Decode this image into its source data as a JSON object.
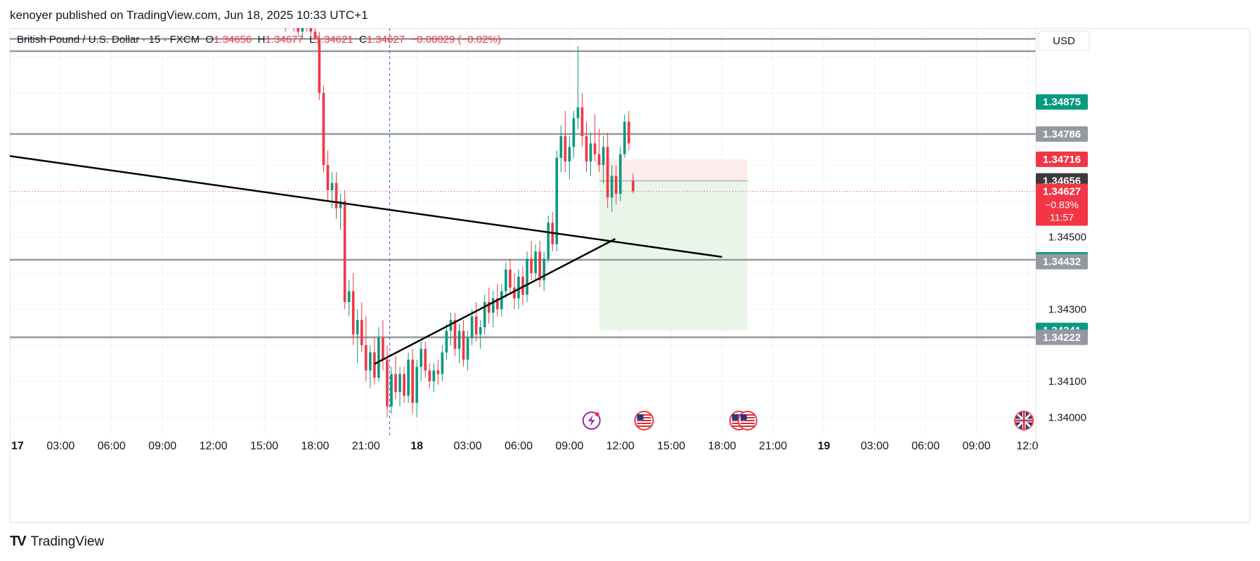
{
  "header": {
    "text": "kenoyer published on TradingView.com, Jun 18, 2025 10:33 UTC+1"
  },
  "footer": {
    "logo": "TV",
    "brand": "TradingView"
  },
  "chart_data": {
    "type": "candlestick",
    "legend": {
      "symbol": "British Pound / U.S. Dollar · 15 · FXCM",
      "o_label": "O",
      "o_value": "1.34656",
      "h_label": "H",
      "h_value": "1.34677",
      "l_label": "L",
      "l_value": "1.34621",
      "c_label": "C",
      "c_value": "1.34627",
      "change": "−0.00029 (−0.02%)"
    },
    "currency": "USD",
    "y_range": [
      1.3395,
      1.3508
    ],
    "y_ticks": [
      "1.34500",
      "1.34300",
      "1.34100",
      "1.34000"
    ],
    "x_ticks": [
      "17",
      "03:00",
      "06:00",
      "09:00",
      "12:00",
      "15:00",
      "18:00",
      "21:00",
      "18",
      "03:00",
      "06:00",
      "09:00",
      "12:00",
      "15:00",
      "18:00",
      "21:00",
      "19",
      "03:00",
      "06:00",
      "09:00",
      "12:0"
    ],
    "x_tick_times": [
      0,
      3,
      6,
      9,
      12,
      15,
      18,
      21,
      24,
      27,
      30,
      33,
      36,
      39,
      42,
      45,
      48,
      51,
      54,
      57,
      60
    ],
    "x_range_hours": [
      0,
      60.5
    ],
    "candles_start_hour": 15.25,
    "candle_step_hours": 0.25,
    "candles": [
      [
        1.3512,
        1.3515,
        1.3509,
        1.351
      ],
      [
        1.351,
        1.3514,
        1.3508,
        1.3513
      ],
      [
        1.3512,
        1.3516,
        1.351,
        1.3511
      ],
      [
        1.3511,
        1.3513,
        1.3508,
        1.3509
      ],
      [
        1.3509,
        1.3512,
        1.3507,
        1.351
      ],
      [
        1.351,
        1.3513,
        1.3508,
        1.3509
      ],
      [
        1.3509,
        1.3511,
        1.3507,
        1.3508
      ],
      [
        1.3508,
        1.3511,
        1.3506,
        1.3507
      ],
      [
        1.3507,
        1.351,
        1.3505,
        1.3509
      ],
      [
        1.3509,
        1.3511,
        1.3507,
        1.3508
      ],
      [
        1.3508,
        1.351,
        1.3506,
        1.3507
      ],
      [
        1.3507,
        1.3509,
        1.3505,
        1.3505
      ],
      [
        1.3505,
        1.3507,
        1.3488,
        1.349
      ],
      [
        1.349,
        1.3492,
        1.3468,
        1.347
      ],
      [
        1.347,
        1.3474,
        1.346,
        1.3463
      ],
      [
        1.3463,
        1.3468,
        1.3458,
        1.3465
      ],
      [
        1.3465,
        1.3468,
        1.3455,
        1.3458
      ],
      [
        1.3458,
        1.3462,
        1.3452,
        1.346
      ],
      [
        1.346,
        1.3463,
        1.343,
        1.3432
      ],
      [
        1.3432,
        1.3438,
        1.3428,
        1.3435
      ],
      [
        1.3435,
        1.344,
        1.342,
        1.3423
      ],
      [
        1.3423,
        1.343,
        1.3415,
        1.3427
      ],
      [
        1.3427,
        1.3432,
        1.3418,
        1.342
      ],
      [
        1.342,
        1.3428,
        1.341,
        1.3413
      ],
      [
        1.3413,
        1.342,
        1.3408,
        1.3418
      ],
      [
        1.3418,
        1.3422,
        1.3409,
        1.3411
      ],
      [
        1.3411,
        1.3425,
        1.341,
        1.3422
      ],
      [
        1.3422,
        1.3427,
        1.3413,
        1.3416
      ],
      [
        1.3416,
        1.342,
        1.34,
        1.3403
      ],
      [
        1.3403,
        1.3414,
        1.3401,
        1.3412
      ],
      [
        1.3412,
        1.3417,
        1.3405,
        1.3407
      ],
      [
        1.3407,
        1.3414,
        1.3403,
        1.3412
      ],
      [
        1.3412,
        1.3414,
        1.3404,
        1.3406
      ],
      [
        1.3406,
        1.3418,
        1.3404,
        1.3416
      ],
      [
        1.3416,
        1.3419,
        1.3401,
        1.3404
      ],
      [
        1.3404,
        1.3416,
        1.34,
        1.3414
      ],
      [
        1.3414,
        1.3421,
        1.341,
        1.3419
      ],
      [
        1.3419,
        1.3421,
        1.3411,
        1.3413
      ],
      [
        1.3413,
        1.3415,
        1.3408,
        1.341
      ],
      [
        1.341,
        1.3415,
        1.3407,
        1.3413
      ],
      [
        1.3413,
        1.3416,
        1.3409,
        1.3412
      ],
      [
        1.3412,
        1.342,
        1.341,
        1.3418
      ],
      [
        1.3418,
        1.3426,
        1.3416,
        1.3424
      ],
      [
        1.3424,
        1.3429,
        1.342,
        1.3427
      ],
      [
        1.3427,
        1.3429,
        1.3417,
        1.3419
      ],
      [
        1.3419,
        1.3426,
        1.3415,
        1.3424
      ],
      [
        1.3424,
        1.3427,
        1.3414,
        1.3416
      ],
      [
        1.3416,
        1.3424,
        1.3413,
        1.3422
      ],
      [
        1.3422,
        1.343,
        1.342,
        1.3428
      ],
      [
        1.3428,
        1.3432,
        1.3421,
        1.3423
      ],
      [
        1.3423,
        1.3427,
        1.3419,
        1.3425
      ],
      [
        1.3425,
        1.3434,
        1.3423,
        1.3432
      ],
      [
        1.3432,
        1.3436,
        1.3426,
        1.3429
      ],
      [
        1.3429,
        1.3435,
        1.3425,
        1.3433
      ],
      [
        1.3433,
        1.3437,
        1.3428,
        1.343
      ],
      [
        1.343,
        1.3437,
        1.3428,
        1.3435
      ],
      [
        1.3435,
        1.3443,
        1.3433,
        1.3441
      ],
      [
        1.3441,
        1.3444,
        1.3434,
        1.3436
      ],
      [
        1.3436,
        1.344,
        1.343,
        1.3433
      ],
      [
        1.3433,
        1.3441,
        1.343,
        1.3439
      ],
      [
        1.3439,
        1.3442,
        1.3431,
        1.3434
      ],
      [
        1.3434,
        1.3446,
        1.3432,
        1.3444
      ],
      [
        1.3444,
        1.3449,
        1.3438,
        1.344
      ],
      [
        1.344,
        1.3448,
        1.3438,
        1.3446
      ],
      [
        1.3446,
        1.3449,
        1.3436,
        1.3438
      ],
      [
        1.3438,
        1.3446,
        1.3435,
        1.3444
      ],
      [
        1.3444,
        1.3456,
        1.3443,
        1.3454
      ],
      [
        1.3454,
        1.3457,
        1.3446,
        1.3448
      ],
      [
        1.3448,
        1.3474,
        1.3446,
        1.3472
      ],
      [
        1.3472,
        1.3481,
        1.3468,
        1.3478
      ],
      [
        1.3478,
        1.3485,
        1.3468,
        1.3471
      ],
      [
        1.3471,
        1.3478,
        1.3466,
        1.3475
      ],
      [
        1.3475,
        1.3485,
        1.3472,
        1.3483
      ],
      [
        1.3483,
        1.3503,
        1.348,
        1.3486
      ],
      [
        1.3486,
        1.349,
        1.3475,
        1.3478
      ],
      [
        1.3478,
        1.3482,
        1.3468,
        1.3471
      ],
      [
        1.3471,
        1.3479,
        1.3467,
        1.3476
      ],
      [
        1.3476,
        1.3484,
        1.3471,
        1.3473
      ],
      [
        1.3473,
        1.348,
        1.3468,
        1.347
      ],
      [
        1.347,
        1.3478,
        1.3465,
        1.3475
      ],
      [
        1.3475,
        1.3479,
        1.3458,
        1.3461
      ],
      [
        1.3461,
        1.347,
        1.3457,
        1.3467
      ],
      [
        1.3467,
        1.347,
        1.3459,
        1.3462
      ],
      [
        1.3462,
        1.3475,
        1.346,
        1.3473
      ],
      [
        1.3473,
        1.3484,
        1.3472,
        1.3482
      ],
      [
        1.3482,
        1.3485,
        1.3474,
        1.3476
      ],
      [
        1.34656,
        1.34677,
        1.34621,
        1.34627
      ]
    ],
    "horizontal_levels": [
      1.3505,
      1.35016,
      1.34786,
      1.34437,
      1.34222
    ],
    "current_price_line": 1.34627,
    "price_labels": [
      {
        "value": 1.34875,
        "text": "1.34875",
        "color": "#089981"
      },
      {
        "value": 1.34786,
        "text": "1.34786",
        "color": "#9598a1"
      },
      {
        "value": 1.34716,
        "text": "1.34716",
        "color": "#f23645"
      },
      {
        "value": 1.34656,
        "text": "1.34656",
        "color": "#3a3a3a"
      },
      {
        "value": 1.34627,
        "text": "1.34627",
        "color": "#f23645"
      },
      {
        "value": 1.34437,
        "text": "1.34437",
        "color": "#089981"
      },
      {
        "value": 1.34432,
        "text": "1.34432",
        "color": "#9598a1"
      },
      {
        "value": 1.34241,
        "text": "1.34241",
        "color": "#089981"
      },
      {
        "value": 1.34222,
        "text": "1.34222",
        "color": "#9598a1"
      }
    ],
    "current_change": "−0.83%",
    "countdown": "11:57",
    "trendlines": [
      {
        "from": [
          0,
          1.34725
        ],
        "to": [
          42,
          1.34445
        ]
      },
      {
        "from": [
          21.5,
          1.34148
        ],
        "to": [
          35.7,
          1.34495
        ]
      }
    ],
    "position": {
      "start_hour": 34.75,
      "end_hour": 43.5,
      "entry": 1.34656,
      "stop": 1.34716,
      "target": 1.34241
    },
    "vertical_marker_hour": 22.4,
    "event_icons": [
      {
        "hour": 34.3,
        "kind": "lightning"
      },
      {
        "hour": 37.4,
        "kind": "us-flag"
      },
      {
        "hour": 43.0,
        "kind": "us-flag"
      },
      {
        "hour": 43.5,
        "kind": "us-flag"
      },
      {
        "hour": 59.8,
        "kind": "uk-flag"
      }
    ],
    "colors": {
      "up": "#089981",
      "down": "#f23645",
      "level_line": "#9598a1",
      "trendline": "#000000",
      "stop_zone": "#fdecec",
      "target_zone": "#e9f5e9"
    }
  }
}
